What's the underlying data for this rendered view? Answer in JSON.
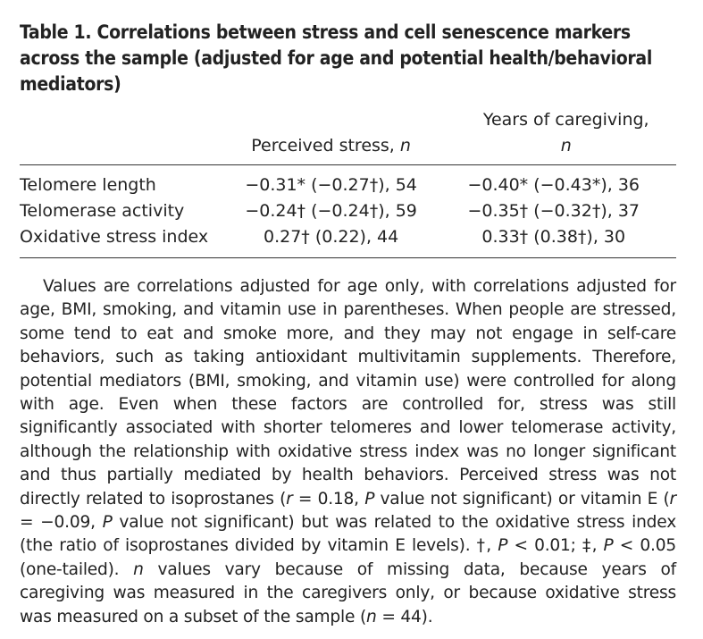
{
  "title": "Table 1. Correlations between stress and cell senescence markers across the sample (adjusted for age and potential health/behavioral mediators)",
  "table": {
    "header": [
      [
        "Perceived stress, ",
        "n"
      ],
      [
        "Years of caregiving, ",
        "n"
      ]
    ],
    "rows": [
      [
        "Telomere length",
        "−0.31* (−0.27†), 54",
        "−0.40* (−0.43*), 36"
      ],
      [
        "Telomerase activity",
        "−0.24† (−0.24†), 59",
        "−0.35† (−0.32†), 37"
      ],
      [
        "Oxidative stress index",
        "0.27† (0.22), 44",
        "0.33† (0.38†), 30"
      ]
    ]
  },
  "footnote": [
    "Values are correlations adjusted for age only, with correlations adjusted for age, BMI, smoking, and vitamin use in parentheses. When people are stressed, some tend to eat and smoke more, and they may not engage in self-care behaviors, such as taking antioxidant multivitamin supplements. Therefore, potential mediators (BMI, smoking, and vitamin use) were controlled for along with age. Even when these factors are controlled for, stress was still significantly associated with shorter telomeres and lower telomerase activity, although the relationship with oxidative stress index was no longer significant and thus partially mediated by health behaviors. Perceived stress was not directly related to isoprostanes (",
    "r",
    " = 0.18, ",
    "P",
    " value not significant) or vitamin E (",
    "r",
    " = −0.09, ",
    "P",
    " value not significant) but was related to the oxidative stress index (the ratio of isoprostanes divided by vitamin E levels). †, ",
    "P",
    " < 0.01; ‡, ",
    "P",
    " < 0.05 (one-tailed). ",
    "n",
    " values vary because of missing data, because years of caregiving was measured in the caregivers only, or because oxidative stress was measured on a subset of the sample (",
    "n",
    " = 44)."
  ]
}
